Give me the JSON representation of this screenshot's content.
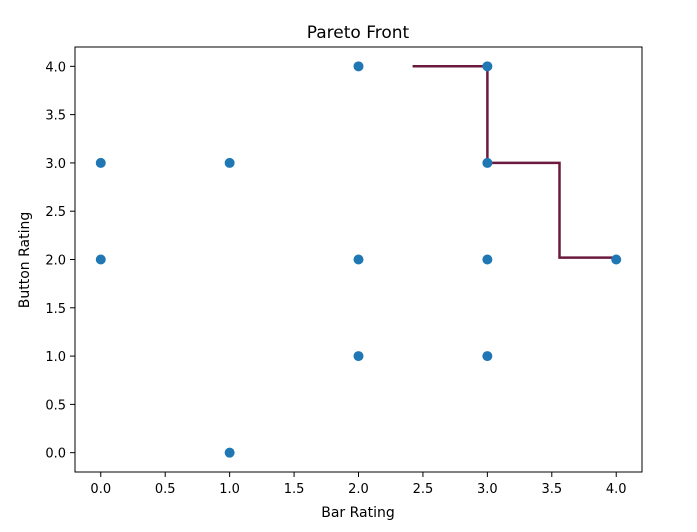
{
  "chart_data": {
    "type": "scatter",
    "title": "Pareto Front",
    "xlabel": "Bar Rating",
    "ylabel": "Button Rating",
    "xlim": [
      -0.2,
      4.2
    ],
    "ylim": [
      -0.2,
      4.2
    ],
    "xticks": [
      0.0,
      0.5,
      1.0,
      1.5,
      2.0,
      2.5,
      3.0,
      3.5,
      4.0
    ],
    "yticks": [
      0.0,
      0.5,
      1.0,
      1.5,
      2.0,
      2.5,
      3.0,
      3.5,
      4.0
    ],
    "xtick_labels": [
      "0.0",
      "0.5",
      "1.0",
      "1.5",
      "2.0",
      "2.5",
      "3.0",
      "3.5",
      "4.0"
    ],
    "ytick_labels": [
      "0.0",
      "0.5",
      "1.0",
      "1.5",
      "2.0",
      "2.5",
      "3.0",
      "3.5",
      "4.0"
    ],
    "grid": false,
    "points": [
      {
        "x": 0,
        "y": 3
      },
      {
        "x": 0,
        "y": 2
      },
      {
        "x": 1,
        "y": 3
      },
      {
        "x": 1,
        "y": 0
      },
      {
        "x": 2,
        "y": 4
      },
      {
        "x": 2,
        "y": 2
      },
      {
        "x": 2,
        "y": 1
      },
      {
        "x": 3,
        "y": 4
      },
      {
        "x": 3,
        "y": 3
      },
      {
        "x": 3,
        "y": 2
      },
      {
        "x": 3,
        "y": 1
      },
      {
        "x": 4,
        "y": 2
      }
    ],
    "pareto_line": [
      {
        "x": 2.42,
        "y": 4
      },
      {
        "x": 3.0,
        "y": 4
      },
      {
        "x": 3.0,
        "y": 3
      },
      {
        "x": 3.56,
        "y": 3
      },
      {
        "x": 3.56,
        "y": 2.02
      },
      {
        "x": 4.0,
        "y": 2.02
      }
    ],
    "colors": {
      "points": "#1f77b4",
      "pareto_line": "#6b1a3e",
      "axes": "#000000"
    }
  }
}
